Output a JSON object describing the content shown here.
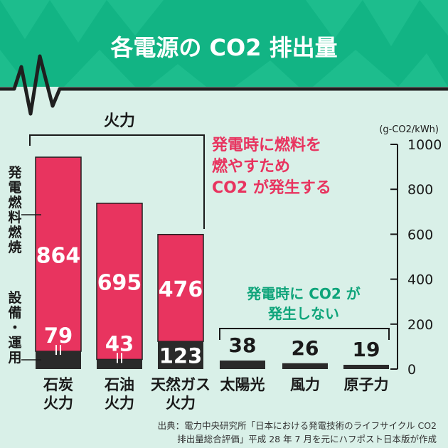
{
  "header": {
    "title": "各電源の CO2 排出量"
  },
  "colors": {
    "header_bg": "#12b484",
    "header_tri_light": "#26c496",
    "fuel": "#e8345f",
    "facility": "#2a2a2a",
    "zero_bar": "#2a2a2a",
    "text_dark": "#1a1a1a",
    "accent_pink": "#e8345f",
    "accent_green": "#0ea47a",
    "page_bg": "#d9f0e8"
  },
  "annotations": {
    "thermal_group": "火力",
    "fuel_note": [
      "発電時に燃料を",
      "燃やすため",
      "CO2 が発生する"
    ],
    "no_emission_note": [
      "発電時に CO2 が",
      "発生しない"
    ],
    "left_fuel_label": [
      "発",
      "電",
      "燃",
      "料",
      "燃",
      "焼"
    ],
    "left_facility_label": [
      "設",
      "備",
      "・",
      "運",
      "用"
    ]
  },
  "source": {
    "lines": [
      "出典：電力中央研究所「日本における発電技術のライフサイクル CO2",
      "排出量総合評価」平成 28 年 7 月を元にハフポスト日本版が作成"
    ]
  },
  "chart_data": {
    "type": "bar",
    "unit": "(g-CO2/kWh)",
    "ylim": [
      0,
      1000
    ],
    "yticks": [
      0,
      200,
      400,
      600,
      800,
      1000
    ],
    "categories": [
      [
        "石炭",
        "火力"
      ],
      [
        "石油",
        "火力"
      ],
      [
        "天然ガス",
        "火力"
      ],
      [
        "太陽光"
      ],
      [
        "風力"
      ],
      [
        "原子力"
      ]
    ],
    "series": [
      {
        "name": "発電燃料燃焼",
        "values": [
          864,
          695,
          476,
          0,
          0,
          0
        ]
      },
      {
        "name": "設備・運用",
        "values": [
          79,
          43,
          123,
          38,
          26,
          19
        ]
      }
    ],
    "legend": "left",
    "grid": false
  }
}
